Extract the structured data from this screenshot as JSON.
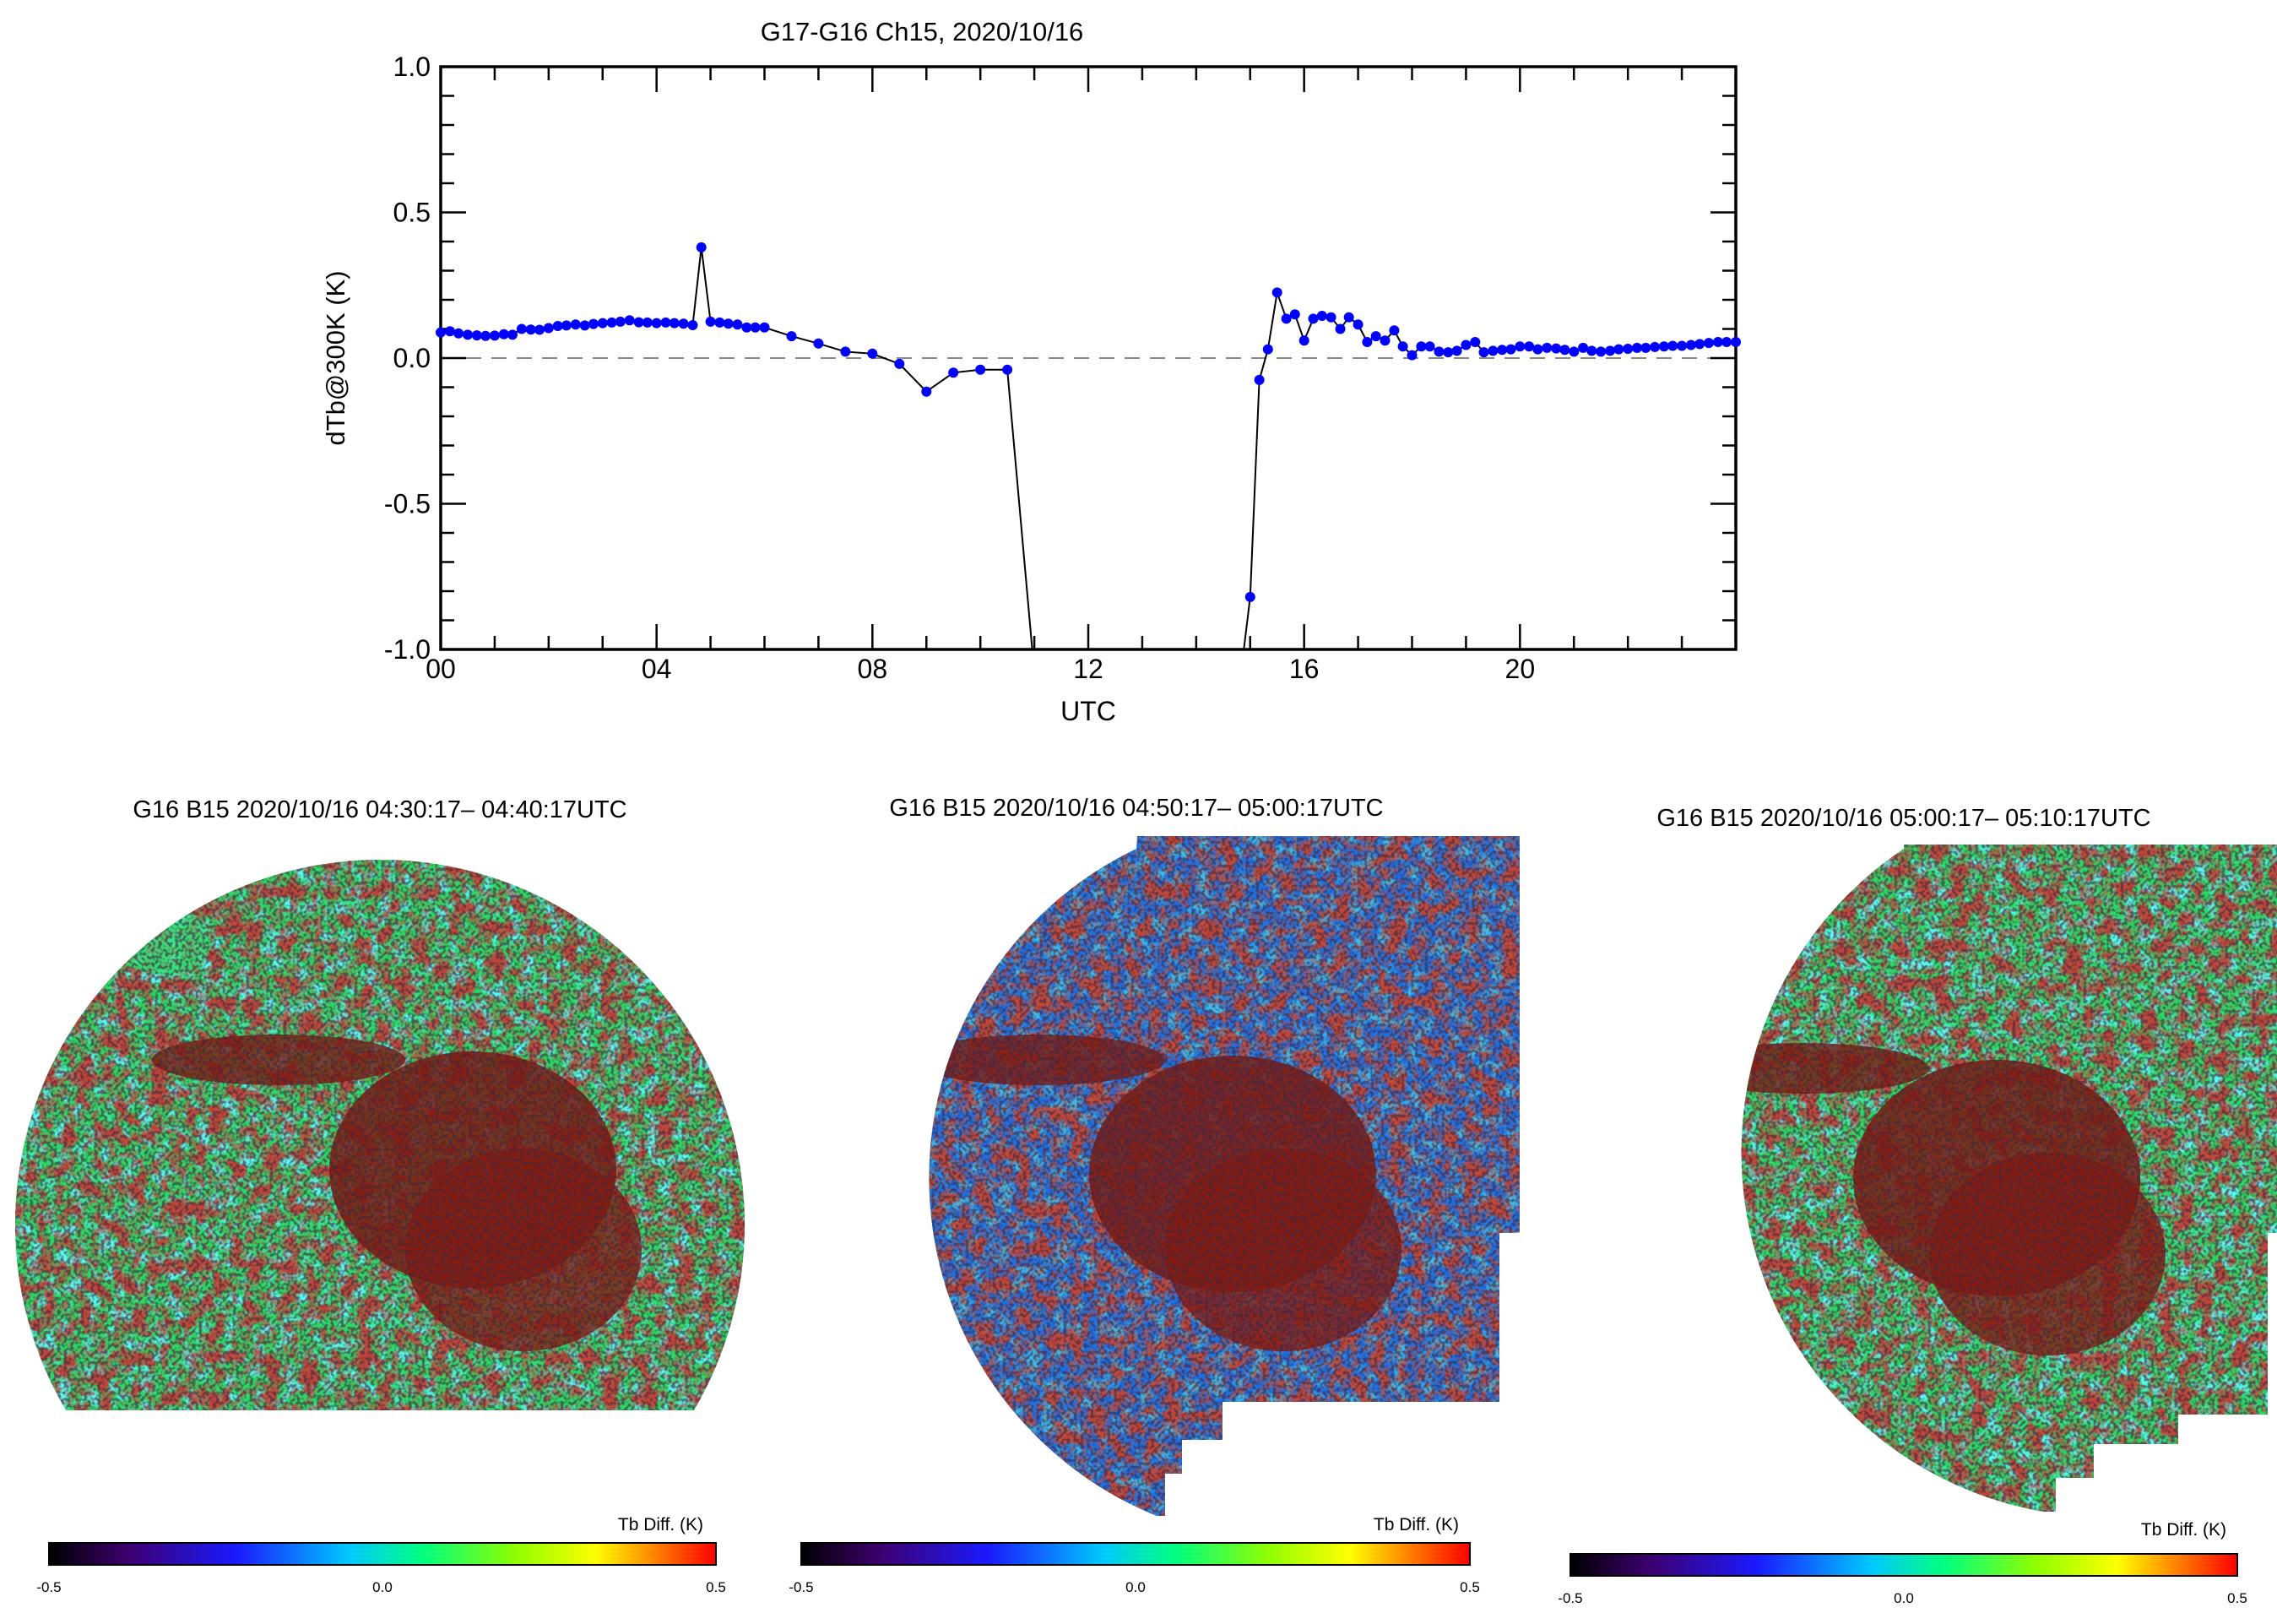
{
  "chart_data": [
    {
      "type": "line",
      "title": "G17-G16 Ch15, 2020/10/16",
      "xlabel": "UTC",
      "ylabel": "dTb@300K (K)",
      "xlim": [
        0,
        24
      ],
      "ylim": [
        -1.0,
        1.0
      ],
      "xticks": [
        0,
        4,
        8,
        12,
        16,
        20
      ],
      "xtick_labels": [
        "00",
        "04",
        "08",
        "12",
        "16",
        "20"
      ],
      "yticks": [
        -1.0,
        -0.5,
        0.0,
        0.5,
        1.0
      ],
      "ytick_labels": [
        "-1.0",
        "-0.5",
        "0.0",
        "0.5",
        "1.0"
      ],
      "reference_line": {
        "y": 0.0,
        "style": "dashed",
        "color": "#888888"
      },
      "grid": false,
      "series": [
        {
          "color": "#0000ff",
          "line_color": "#000000",
          "points": [
            [
              0.0,
              0.088
            ],
            [
              0.17,
              0.092
            ],
            [
              0.33,
              0.085
            ],
            [
              0.5,
              0.08
            ],
            [
              0.67,
              0.078
            ],
            [
              0.83,
              0.076
            ],
            [
              1.0,
              0.077
            ],
            [
              1.17,
              0.082
            ],
            [
              1.33,
              0.08
            ],
            [
              1.5,
              0.1
            ],
            [
              1.67,
              0.098
            ],
            [
              1.83,
              0.097
            ],
            [
              2.0,
              0.103
            ],
            [
              2.17,
              0.11
            ],
            [
              2.33,
              0.112
            ],
            [
              2.5,
              0.115
            ],
            [
              2.67,
              0.112
            ],
            [
              2.83,
              0.117
            ],
            [
              3.0,
              0.12
            ],
            [
              3.17,
              0.122
            ],
            [
              3.33,
              0.125
            ],
            [
              3.5,
              0.13
            ],
            [
              3.67,
              0.123
            ],
            [
              3.83,
              0.122
            ],
            [
              4.0,
              0.12
            ],
            [
              4.17,
              0.122
            ],
            [
              4.33,
              0.12
            ],
            [
              4.5,
              0.118
            ],
            [
              4.67,
              0.113
            ],
            [
              4.83,
              0.38
            ],
            [
              5.0,
              0.125
            ],
            [
              5.17,
              0.122
            ],
            [
              5.33,
              0.118
            ],
            [
              5.5,
              0.115
            ],
            [
              5.67,
              0.105
            ],
            [
              5.83,
              0.105
            ],
            [
              6.0,
              0.105
            ],
            [
              6.5,
              0.075
            ],
            [
              7.0,
              0.05
            ],
            [
              7.5,
              0.022
            ],
            [
              8.0,
              0.015
            ],
            [
              8.5,
              -0.02
            ],
            [
              9.0,
              -0.115
            ],
            [
              9.5,
              -0.05
            ],
            [
              10.0,
              -0.04
            ],
            [
              10.5,
              -0.04
            ],
            [
              11.0,
              -1.08
            ],
            [
              14.83,
              -1.08
            ],
            [
              15.0,
              -0.82
            ],
            [
              15.17,
              -0.075
            ],
            [
              15.33,
              0.03
            ],
            [
              15.5,
              0.225
            ],
            [
              15.67,
              0.135
            ],
            [
              15.83,
              0.15
            ],
            [
              16.0,
              0.06
            ],
            [
              16.17,
              0.135
            ],
            [
              16.33,
              0.145
            ],
            [
              16.5,
              0.14
            ],
            [
              16.67,
              0.1
            ],
            [
              16.83,
              0.14
            ],
            [
              17.0,
              0.115
            ],
            [
              17.17,
              0.055
            ],
            [
              17.33,
              0.075
            ],
            [
              17.5,
              0.06
            ],
            [
              17.67,
              0.095
            ],
            [
              17.83,
              0.04
            ],
            [
              18.0,
              0.01
            ],
            [
              18.17,
              0.04
            ],
            [
              18.33,
              0.04
            ],
            [
              18.5,
              0.022
            ],
            [
              18.67,
              0.02
            ],
            [
              18.83,
              0.025
            ],
            [
              19.0,
              0.045
            ],
            [
              19.17,
              0.055
            ],
            [
              19.33,
              0.02
            ],
            [
              19.5,
              0.025
            ],
            [
              19.67,
              0.028
            ],
            [
              19.83,
              0.03
            ],
            [
              20.0,
              0.04
            ],
            [
              20.17,
              0.04
            ],
            [
              20.33,
              0.03
            ],
            [
              20.5,
              0.035
            ],
            [
              20.67,
              0.033
            ],
            [
              20.83,
              0.028
            ],
            [
              21.0,
              0.022
            ],
            [
              21.17,
              0.035
            ],
            [
              21.33,
              0.025
            ],
            [
              21.5,
              0.022
            ],
            [
              21.67,
              0.025
            ],
            [
              21.83,
              0.03
            ],
            [
              22.0,
              0.032
            ],
            [
              22.17,
              0.035
            ],
            [
              22.33,
              0.035
            ],
            [
              22.5,
              0.038
            ],
            [
              22.67,
              0.04
            ],
            [
              22.83,
              0.042
            ],
            [
              23.0,
              0.042
            ],
            [
              23.17,
              0.045
            ],
            [
              23.33,
              0.048
            ],
            [
              23.5,
              0.052
            ],
            [
              23.67,
              0.055
            ],
            [
              23.83,
              0.055
            ],
            [
              24.0,
              0.055
            ]
          ]
        }
      ]
    },
    {
      "type": "heatmap",
      "title": "G16 B15 2020/10/16 04:30:17– 04:40:17UTC",
      "colorbar_label": "Tb Diff. (K)",
      "colorbar_range": [
        -0.5,
        0.5
      ],
      "colorbar_tick_labels": [
        "-0.5",
        "0.0",
        "0.5"
      ],
      "dominant_colors": [
        "#2bd866",
        "#8f1a0e"
      ]
    },
    {
      "type": "heatmap",
      "title": "G16 B15 2020/10/16 04:50:17– 05:00:17UTC",
      "colorbar_label": "Tb Diff. (K)",
      "colorbar_range": [
        -0.5,
        0.5
      ],
      "colorbar_tick_labels": [
        "-0.5",
        "0.0",
        "0.5"
      ],
      "dominant_colors": [
        "#1e6fe0",
        "#8f1a0e"
      ]
    },
    {
      "type": "heatmap",
      "title": "G16 B15 2020/10/16 05:00:17– 05:10:17UTC",
      "colorbar_label": "Tb Diff. (K)",
      "colorbar_range": [
        -0.5,
        0.5
      ],
      "colorbar_tick_labels": [
        "-0.5",
        "0.0",
        "0.5"
      ],
      "dominant_colors": [
        "#2bd866",
        "#8f1a0e"
      ]
    }
  ],
  "colormap": [
    "#000000",
    "#3d0070",
    "#1a1aff",
    "#00c8ff",
    "#00ff80",
    "#90ff00",
    "#ffff00",
    "#ff8000",
    "#ff0000"
  ]
}
